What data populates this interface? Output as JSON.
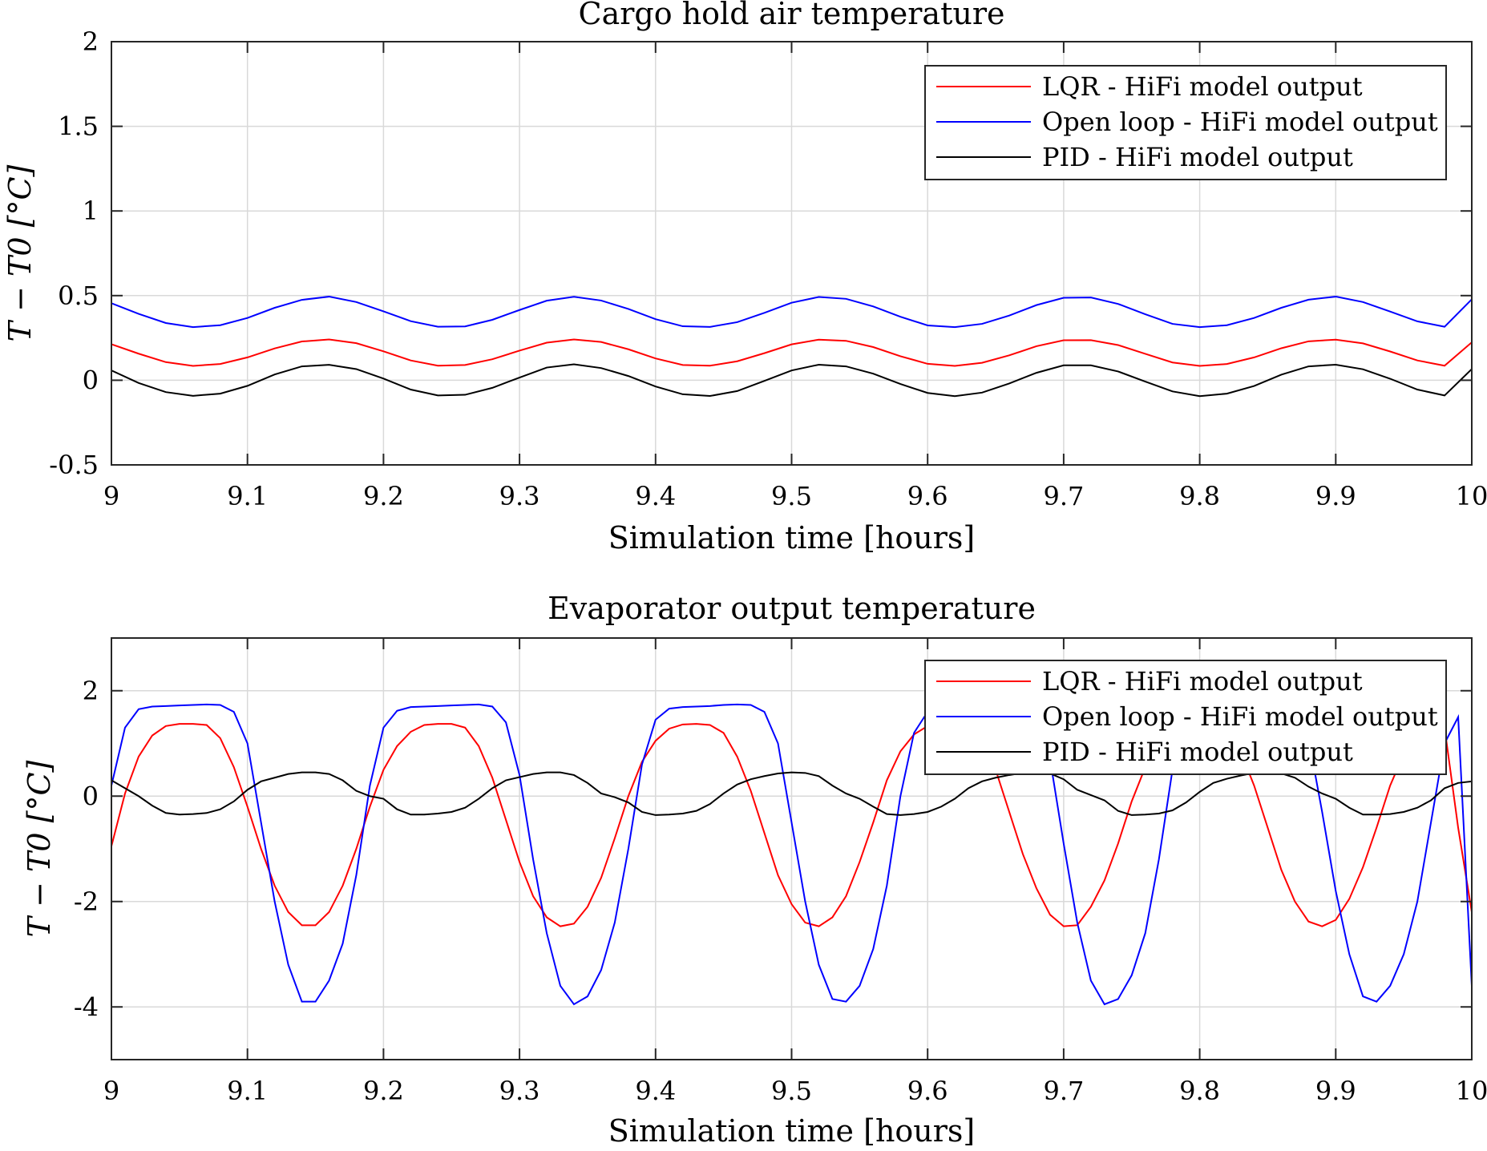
{
  "chart_data": [
    {
      "type": "line",
      "title": "Cargo hold air temperature",
      "xlabel": "Simulation time [hours]",
      "ylabel": "T − T0 [°C]",
      "xlim": [
        9,
        10
      ],
      "ylim": [
        -0.5,
        2
      ],
      "xticks": [
        "9",
        "9.1",
        "9.2",
        "9.3",
        "9.4",
        "9.5",
        "9.6",
        "9.7",
        "9.8",
        "9.9",
        "10"
      ],
      "yticks": [
        "-0.5",
        "0",
        "0.5",
        "1",
        "1.5",
        "2"
      ],
      "grid": true,
      "legend_position": "top-right",
      "x": [
        9.0,
        9.02,
        9.04,
        9.06,
        9.08,
        9.1,
        9.12,
        9.14,
        9.16,
        9.18,
        9.2,
        9.22,
        9.24,
        9.26,
        9.28,
        9.3,
        9.32,
        9.34,
        9.36,
        9.38,
        9.4,
        9.42,
        9.44,
        9.46,
        9.48,
        9.5,
        9.52,
        9.54,
        9.56,
        9.58,
        9.6,
        9.62,
        9.64,
        9.66,
        9.68,
        9.7,
        9.72,
        9.74,
        9.76,
        9.78,
        9.8,
        9.82,
        9.84,
        9.86,
        9.88,
        9.9,
        9.92,
        9.94,
        9.96,
        9.98,
        10.0
      ],
      "series": [
        {
          "name": "LQR - HiFi model output",
          "color": "#ff0000",
          "values": [
            0.213,
            0.157,
            0.107,
            0.085,
            0.096,
            0.135,
            0.188,
            0.229,
            0.241,
            0.219,
            0.171,
            0.117,
            0.086,
            0.09,
            0.124,
            0.175,
            0.222,
            0.241,
            0.226,
            0.183,
            0.129,
            0.09,
            0.086,
            0.112,
            0.16,
            0.212,
            0.24,
            0.233,
            0.196,
            0.142,
            0.097,
            0.085,
            0.103,
            0.147,
            0.201,
            0.236,
            0.237,
            0.208,
            0.156,
            0.105,
            0.085,
            0.096,
            0.135,
            0.189,
            0.23,
            0.24,
            0.218,
            0.17,
            0.117,
            0.086,
            0.224
          ]
        },
        {
          "name": "Open loop - HiFi model output",
          "color": "#0000ff",
          "values": [
            0.455,
            0.392,
            0.338,
            0.314,
            0.325,
            0.368,
            0.428,
            0.475,
            0.494,
            0.462,
            0.407,
            0.349,
            0.316,
            0.318,
            0.357,
            0.415,
            0.47,
            0.493,
            0.471,
            0.421,
            0.361,
            0.319,
            0.315,
            0.343,
            0.398,
            0.458,
            0.492,
            0.481,
            0.436,
            0.375,
            0.324,
            0.314,
            0.333,
            0.382,
            0.444,
            0.487,
            0.489,
            0.451,
            0.39,
            0.333,
            0.314,
            0.325,
            0.368,
            0.428,
            0.476,
            0.494,
            0.462,
            0.406,
            0.348,
            0.316,
            0.478
          ]
        },
        {
          "name": "PID - HiFi model output",
          "color": "#000000",
          "values": [
            0.058,
            -0.016,
            -0.07,
            -0.092,
            -0.079,
            -0.033,
            0.034,
            0.082,
            0.091,
            0.066,
            0.01,
            -0.055,
            -0.09,
            -0.086,
            -0.045,
            0.016,
            0.075,
            0.094,
            0.072,
            0.025,
            -0.037,
            -0.083,
            -0.093,
            -0.064,
            -0.004,
            0.058,
            0.092,
            0.082,
            0.039,
            -0.022,
            -0.075,
            -0.094,
            -0.073,
            -0.019,
            0.044,
            0.088,
            0.088,
            0.052,
            -0.008,
            -0.066,
            -0.094,
            -0.079,
            -0.034,
            0.033,
            0.082,
            0.092,
            0.065,
            0.009,
            -0.055,
            -0.09,
            0.066
          ]
        }
      ]
    },
    {
      "type": "line",
      "title": "Evaporator output temperature",
      "xlabel": "Simulation time [hours]",
      "ylabel": "T − T0 [°C]",
      "xlim": [
        9,
        10
      ],
      "ylim": [
        -5,
        3
      ],
      "xticks": [
        "9",
        "9.1",
        "9.2",
        "9.3",
        "9.4",
        "9.5",
        "9.6",
        "9.7",
        "9.8",
        "9.9",
        "10"
      ],
      "yticks": [
        "-4",
        "-2",
        "0",
        "2"
      ],
      "grid": true,
      "legend_position": "top-right",
      "x": [
        9.0,
        9.01,
        9.02,
        9.03,
        9.04,
        9.05,
        9.06,
        9.07,
        9.08,
        9.09,
        9.1,
        9.11,
        9.12,
        9.13,
        9.14,
        9.15,
        9.16,
        9.17,
        9.18,
        9.19,
        9.2,
        9.21,
        9.22,
        9.23,
        9.24,
        9.25,
        9.26,
        9.27,
        9.28,
        9.29,
        9.3,
        9.31,
        9.32,
        9.33,
        9.34,
        9.35,
        9.36,
        9.37,
        9.38,
        9.39,
        9.4,
        9.41,
        9.42,
        9.43,
        9.44,
        9.45,
        9.46,
        9.47,
        9.48,
        9.49,
        9.5,
        9.51,
        9.52,
        9.53,
        9.54,
        9.55,
        9.56,
        9.57,
        9.58,
        9.59,
        9.6,
        9.61,
        9.62,
        9.63,
        9.64,
        9.65,
        9.66,
        9.67,
        9.68,
        9.69,
        9.7,
        9.71,
        9.72,
        9.73,
        9.74,
        9.75,
        9.76,
        9.77,
        9.78,
        9.79,
        9.8,
        9.81,
        9.82,
        9.83,
        9.84,
        9.85,
        9.86,
        9.87,
        9.88,
        9.89,
        9.9,
        9.91,
        9.92,
        9.93,
        9.94,
        9.95,
        9.96,
        9.97,
        9.98,
        9.99,
        10.0
      ],
      "series": [
        {
          "name": "LQR - HiFi model output",
          "color": "#ff0000",
          "values": [
            -0.95,
            0.05,
            0.75,
            1.15,
            1.33,
            1.37,
            1.37,
            1.35,
            1.1,
            0.55,
            -0.2,
            -1.0,
            -1.7,
            -2.2,
            -2.45,
            -2.45,
            -2.2,
            -1.7,
            -1.0,
            -0.2,
            0.5,
            0.95,
            1.22,
            1.35,
            1.37,
            1.37,
            1.3,
            0.95,
            0.35,
            -0.45,
            -1.25,
            -1.9,
            -2.3,
            -2.47,
            -2.42,
            -2.1,
            -1.55,
            -0.8,
            0.0,
            0.65,
            1.05,
            1.28,
            1.36,
            1.37,
            1.35,
            1.2,
            0.75,
            0.1,
            -0.7,
            -1.5,
            -2.05,
            -2.4,
            -2.47,
            -2.3,
            -1.9,
            -1.25,
            -0.5,
            0.3,
            0.85,
            1.17,
            1.33,
            1.37,
            1.37,
            1.33,
            1.05,
            0.5,
            -0.3,
            -1.1,
            -1.75,
            -2.25,
            -2.47,
            -2.45,
            -2.1,
            -1.6,
            -0.9,
            -0.1,
            0.55,
            1.0,
            1.25,
            1.36,
            1.37,
            1.36,
            1.25,
            0.85,
            0.2,
            -0.6,
            -1.4,
            -2.0,
            -2.38,
            -2.47,
            -2.35,
            -1.95,
            -1.35,
            -0.6,
            0.2,
            0.8,
            1.15,
            1.32,
            1.3,
            -0.6,
            -2.2
          ]
        },
        {
          "name": "Open loop - HiFi model output",
          "color": "#0000ff",
          "values": [
            0.2,
            1.3,
            1.65,
            1.7,
            1.71,
            1.72,
            1.73,
            1.74,
            1.73,
            1.6,
            1.0,
            -0.5,
            -2.0,
            -3.2,
            -3.9,
            -3.9,
            -3.5,
            -2.8,
            -1.5,
            0.2,
            1.3,
            1.62,
            1.69,
            1.7,
            1.71,
            1.72,
            1.73,
            1.74,
            1.7,
            1.4,
            0.4,
            -1.2,
            -2.6,
            -3.6,
            -3.95,
            -3.8,
            -3.3,
            -2.4,
            -1.0,
            0.6,
            1.45,
            1.66,
            1.69,
            1.7,
            1.71,
            1.73,
            1.74,
            1.73,
            1.6,
            1.0,
            -0.5,
            -2.0,
            -3.2,
            -3.85,
            -3.9,
            -3.6,
            -2.9,
            -1.7,
            0.0,
            1.2,
            1.6,
            1.68,
            1.7,
            1.71,
            1.72,
            1.73,
            1.74,
            1.73,
            1.5,
            0.7,
            -0.9,
            -2.4,
            -3.5,
            -3.95,
            -3.85,
            -3.4,
            -2.6,
            -1.2,
            0.5,
            1.4,
            1.65,
            1.69,
            1.7,
            1.71,
            1.73,
            1.74,
            1.73,
            1.6,
            1.1,
            -0.3,
            -1.8,
            -3.0,
            -3.8,
            -3.9,
            -3.6,
            -3.0,
            -2.0,
            -0.5,
            1.0,
            1.5,
            -3.6
          ]
        },
        {
          "name": "PID - HiFi model output",
          "color": "#000000",
          "values": [
            0.3,
            0.15,
            0.0,
            -0.18,
            -0.32,
            -0.35,
            -0.34,
            -0.32,
            -0.25,
            -0.1,
            0.12,
            0.28,
            0.35,
            0.42,
            0.45,
            0.45,
            0.42,
            0.3,
            0.1,
            0.0,
            -0.05,
            -0.25,
            -0.35,
            -0.35,
            -0.33,
            -0.3,
            -0.22,
            -0.05,
            0.15,
            0.3,
            0.36,
            0.42,
            0.45,
            0.45,
            0.4,
            0.25,
            0.05,
            -0.02,
            -0.12,
            -0.3,
            -0.36,
            -0.35,
            -0.33,
            -0.28,
            -0.15,
            0.05,
            0.22,
            0.32,
            0.38,
            0.43,
            0.45,
            0.44,
            0.38,
            0.2,
            0.05,
            -0.05,
            -0.2,
            -0.34,
            -0.36,
            -0.34,
            -0.3,
            -0.2,
            -0.05,
            0.15,
            0.28,
            0.35,
            0.4,
            0.44,
            0.45,
            0.43,
            0.32,
            0.12,
            0.02,
            -0.08,
            -0.28,
            -0.36,
            -0.35,
            -0.33,
            -0.27,
            -0.12,
            0.08,
            0.25,
            0.33,
            0.39,
            0.44,
            0.45,
            0.43,
            0.35,
            0.18,
            0.05,
            -0.05,
            -0.22,
            -0.35,
            -0.35,
            -0.34,
            -0.3,
            -0.22,
            -0.08,
            0.15,
            0.25,
            0.28
          ]
        }
      ]
    }
  ]
}
